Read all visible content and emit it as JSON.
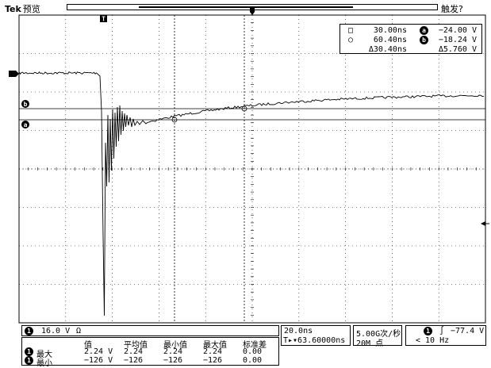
{
  "header": {
    "brand": "Tek",
    "mode": "预览",
    "trigger_status": "触发?"
  },
  "markers": {
    "trigger_position": "T",
    "channel_ground": "1",
    "cursor_a": "a",
    "cursor_b": "b"
  },
  "cursor_readout": {
    "row1": {
      "time": "30.00ns",
      "cursor": "a",
      "value": "−24.00 V"
    },
    "row2": {
      "time": "60.40ns",
      "cursor": "b",
      "value": "−18.24 V"
    },
    "delta": {
      "time": "Δ30.40ns",
      "value": "Δ5.760 V"
    }
  },
  "status_bar": {
    "channel_chip": "1",
    "channel_scale": "16.0 V",
    "channel_coupling": "Ω",
    "timebase": "20.0ns",
    "trigger_offset": "T▸▾63.60000ns",
    "sample_rate": "5.00G次/秒",
    "record_length": "20M 点",
    "trigger_chip": "1",
    "trigger_slope": "∫",
    "trigger_level": "−77.4 V",
    "trigger_freq": "< 10 Hz"
  },
  "measurements": {
    "headers": [
      "值",
      "平均值",
      "最小值",
      "最大值",
      "标准差"
    ],
    "rows": [
      {
        "chip": "1",
        "label": "最大",
        "values": [
          "2.24 V",
          "2.24",
          "2.24",
          "2.24",
          "0.00"
        ]
      },
      {
        "chip": "1",
        "label": "最小",
        "values": [
          "−126 V",
          "−126",
          "−126",
          "−126",
          "0.00"
        ]
      }
    ]
  },
  "colors": {
    "trace": "#000000",
    "grid": "#000000",
    "background": "#ffffff"
  }
}
